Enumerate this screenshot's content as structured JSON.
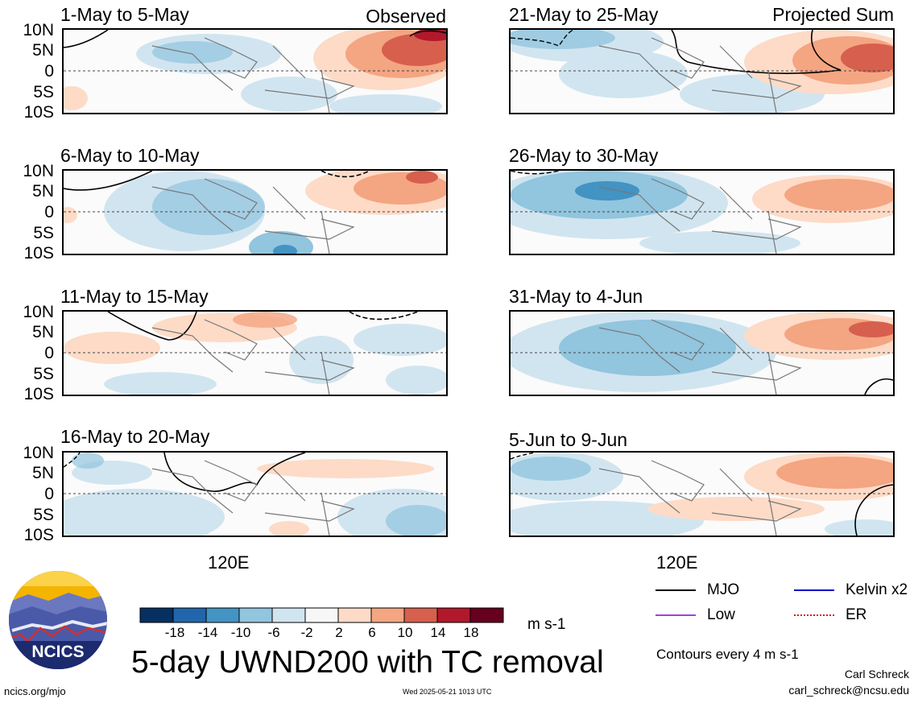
{
  "title": "5-day UWND200 with TC removal",
  "tags": {
    "observed": "Observed",
    "projected": "Projected Sum"
  },
  "lat_labels": [
    "10N",
    "5N",
    "0",
    "5S",
    "10S"
  ],
  "lon_label": "120E",
  "panels": [
    {
      "title": "1-May to 5-May",
      "side": "observed"
    },
    {
      "title": "6-May to 10-May",
      "side": "observed"
    },
    {
      "title": "11-May to 15-May",
      "side": "observed"
    },
    {
      "title": "16-May to 20-May",
      "side": "observed"
    },
    {
      "title": "21-May to 25-May",
      "side": "projected"
    },
    {
      "title": "26-May to 30-May",
      "side": "projected"
    },
    {
      "title": "31-May to 4-Jun",
      "side": "projected"
    },
    {
      "title": "5-Jun to 9-Jun",
      "side": "projected"
    }
  ],
  "colorbar": {
    "labels": [
      "-18",
      "-14",
      "-10",
      "-6",
      "-2",
      "2",
      "6",
      "10",
      "14",
      "18"
    ],
    "colors": [
      "#053061",
      "#2166ac",
      "#4393c3",
      "#92c5de",
      "#d1e5f0",
      "#f7f7f7",
      "#fddbc7",
      "#f4a582",
      "#d6604d",
      "#b2182b",
      "#67001f"
    ],
    "units": "m s-1"
  },
  "legend": [
    {
      "label": "MJO",
      "color": "#000000",
      "style": "solid"
    },
    {
      "label": "Kelvin x2",
      "color": "#0000cc",
      "style": "solid"
    },
    {
      "label": "Low",
      "color": "#a040e0",
      "style": "solid"
    },
    {
      "label": "ER",
      "color": "#cc2222",
      "style": "dotted"
    }
  ],
  "contour_note": "Contours every 4 m s-1",
  "author": "Carl Schreck",
  "email": "carl_schreck@ncsu.edu",
  "site": "ncics.org/mjo",
  "timestamp": "Wed 2025-05-21 1013 UTC",
  "logo_text": "NCICS"
}
